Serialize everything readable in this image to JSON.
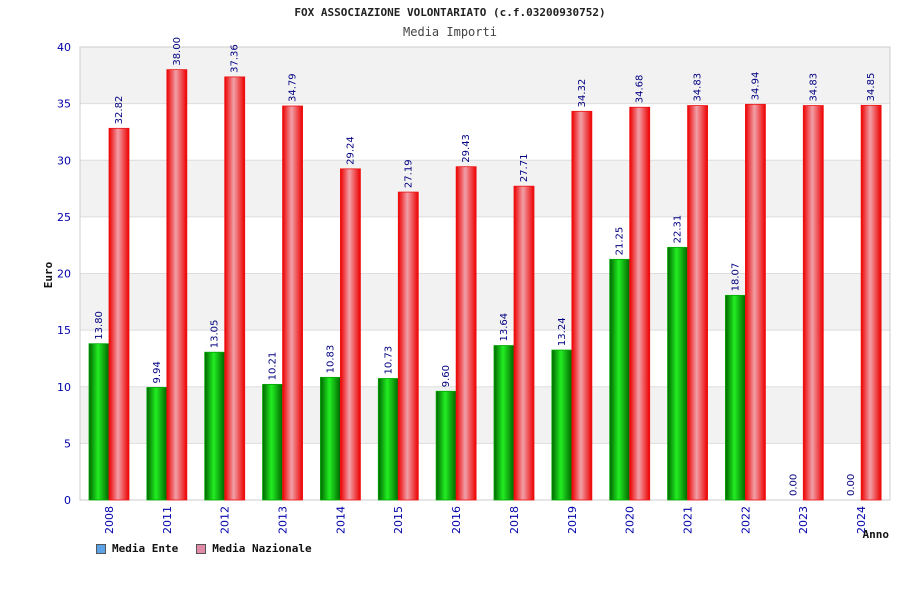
{
  "colors": {
    "ente": "#00aa00",
    "nazionale": "#ee1111",
    "legend_ente": "#5ba3e6",
    "legend_nazionale": "#e08aa8",
    "axis_text": "#0000aa",
    "value_text": "#000080",
    "band": "#f2f2f2"
  },
  "chart_data": {
    "type": "bar",
    "title": "FOX ASSOCIAZIONE VOLONTARIATO (c.f.03200930752)",
    "subtitle": "Media Importi",
    "xlabel": "Anno",
    "ylabel": "Euro",
    "ylim": [
      0,
      40
    ],
    "yticks": [
      0,
      5,
      10,
      15,
      20,
      25,
      30,
      35,
      40
    ],
    "grid": true,
    "legend_position": "bottom-left",
    "categories": [
      "2008",
      "2011",
      "2012",
      "2013",
      "2014",
      "2015",
      "2016",
      "2018",
      "2019",
      "2020",
      "2021",
      "2022",
      "2023",
      "2024"
    ],
    "series": [
      {
        "name": "Media Ente",
        "values": [
          13.8,
          9.94,
          13.05,
          10.21,
          10.83,
          10.73,
          9.6,
          13.64,
          13.24,
          21.25,
          22.31,
          18.07,
          0.0,
          0.0
        ],
        "labels": [
          "13.80",
          "9.94",
          "13.05",
          "10.21",
          "10.83",
          "10.73",
          "9.60",
          "13.64",
          "13.24",
          "21.25",
          "22.31",
          "18.07",
          "0.00",
          "0.00"
        ]
      },
      {
        "name": "Media Nazionale",
        "values": [
          32.82,
          38.0,
          37.36,
          34.79,
          29.24,
          27.19,
          29.43,
          27.71,
          34.32,
          34.68,
          34.83,
          34.94,
          34.83,
          34.85
        ],
        "labels": [
          "32.82",
          "38.00",
          "37.36",
          "34.79",
          "29.24",
          "27.19",
          "29.43",
          "27.71",
          "34.32",
          "34.68",
          "34.83",
          "34.94",
          "34.83",
          "34.85"
        ]
      }
    ]
  }
}
